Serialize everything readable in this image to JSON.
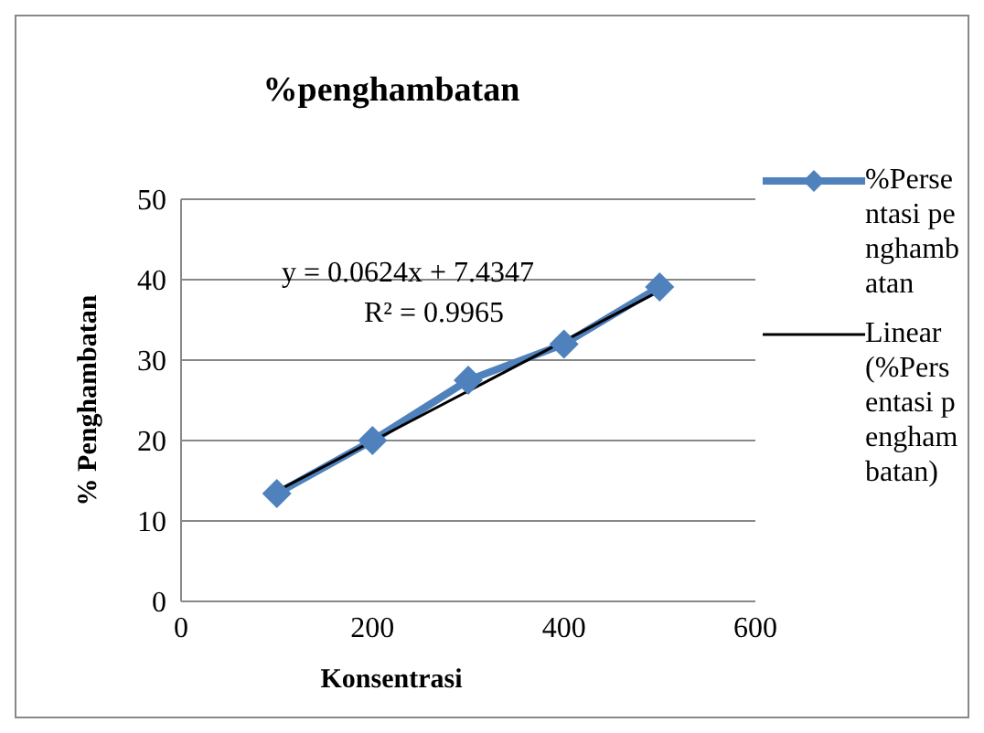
{
  "chart_data": {
    "type": "line",
    "title": "%penghambatan",
    "xlabel": "Konsentrasi",
    "ylabel": "% Penghambatan",
    "x": [
      100,
      200,
      300,
      400,
      500
    ],
    "series": [
      {
        "name": "%Persentasi penghambatan",
        "color": "#4f81bd",
        "values": [
          13.4,
          20.0,
          27.5,
          32.0,
          39.1
        ],
        "marker": "diamond"
      },
      {
        "type": "line",
        "name": "Linear (%Persentasi penghambatan)",
        "color": "#000000",
        "x": [
          100,
          500
        ],
        "values": [
          13.7,
          38.6
        ],
        "marker": "none"
      }
    ],
    "xlim": [
      0,
      600
    ],
    "xticks": [
      0,
      200,
      400,
      600
    ],
    "ylim": [
      0,
      50
    ],
    "yticks": [
      0,
      10,
      20,
      30,
      40,
      50
    ],
    "grid": "y",
    "legend": "right",
    "annotations": [
      "y = 0.0624x + 7.4347",
      "R² = 0.9965"
    ]
  }
}
